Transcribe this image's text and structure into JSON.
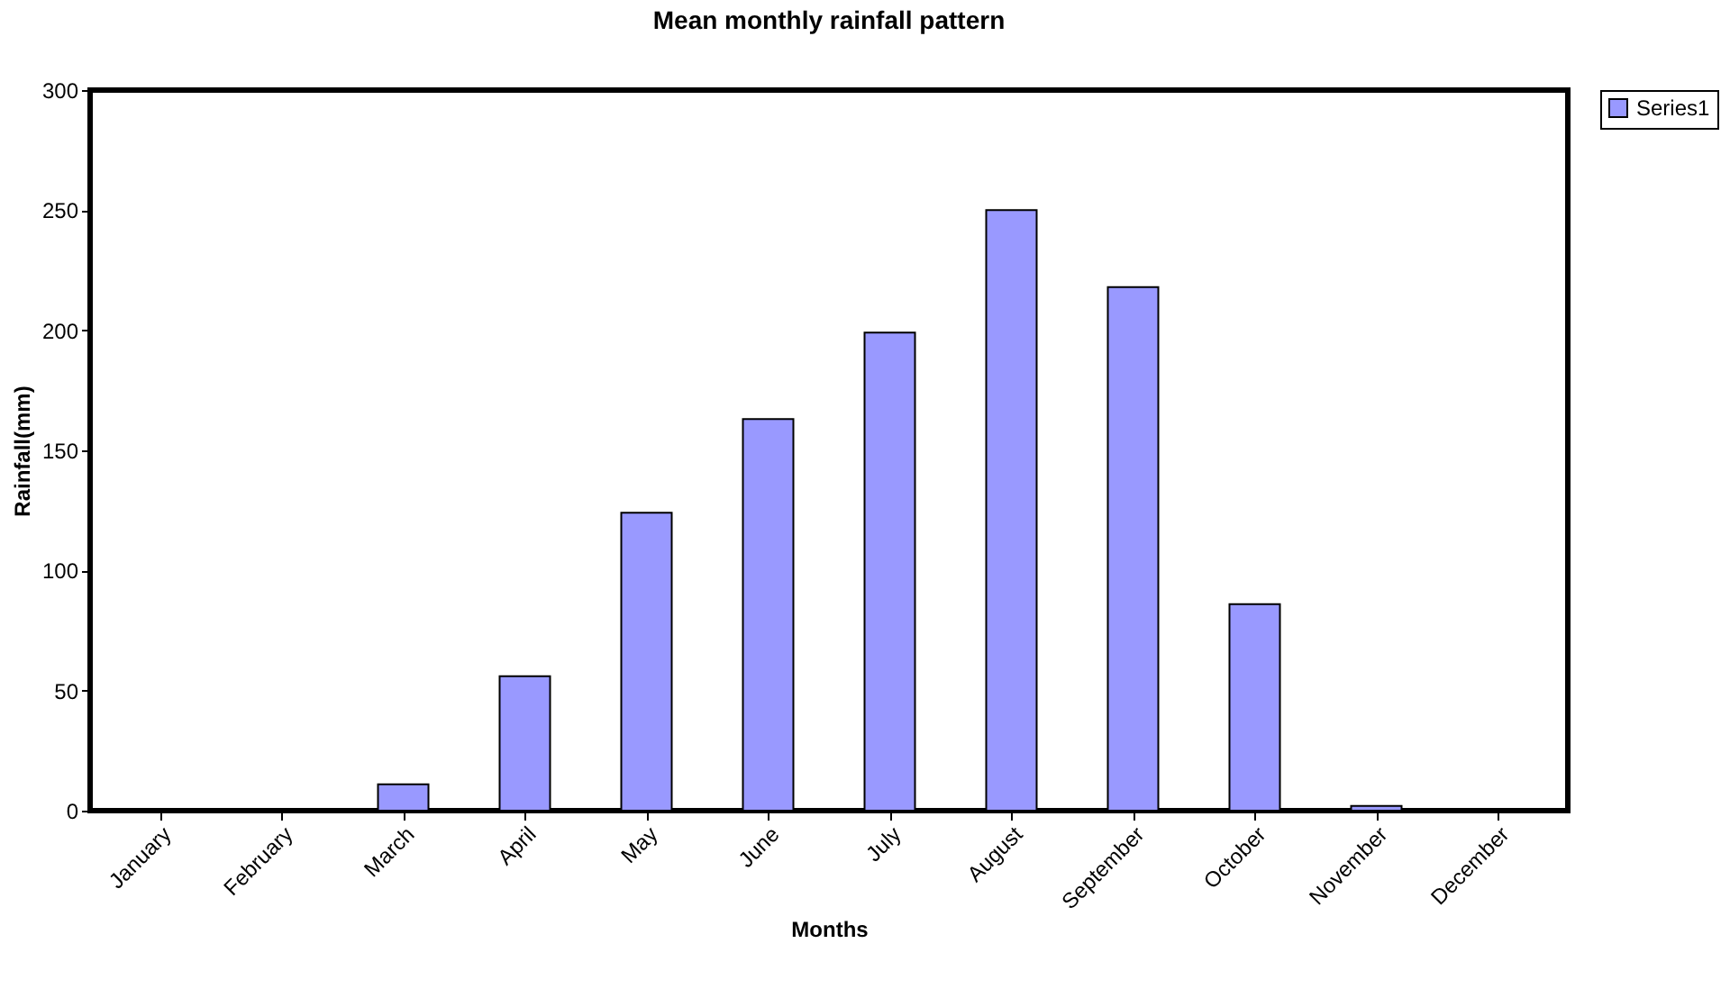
{
  "chart_data": {
    "type": "bar",
    "title": "Mean monthly rainfall pattern",
    "xlabel": "Months",
    "ylabel": "Rainfall(mm)",
    "categories": [
      "January",
      "February",
      "March",
      "April",
      "May",
      "June",
      "July",
      "August",
      "September",
      "October",
      "November",
      "December"
    ],
    "series": [
      {
        "name": "Series1",
        "color": "#9999ff",
        "values": [
          0.5,
          0.5,
          11,
          56,
          124,
          163,
          199,
          250,
          218,
          86,
          2,
          null
        ]
      }
    ],
    "ylim": [
      0,
      300
    ],
    "yticks": [
      0,
      50,
      100,
      150,
      200,
      250,
      300
    ],
    "grid": false,
    "legend": "right"
  }
}
